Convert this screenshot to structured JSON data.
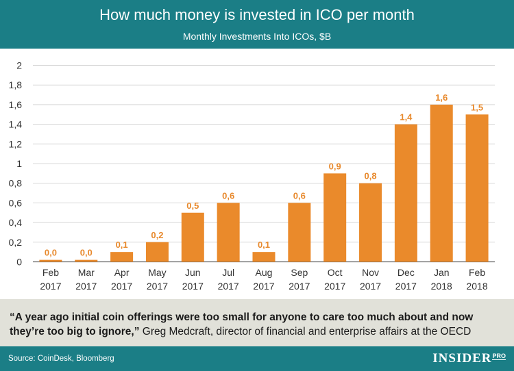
{
  "header": {
    "title": "How much money is invested in ICO per month",
    "subtitle": "Monthly Investments Into ICOs, $B"
  },
  "quote": {
    "bold_part": "“A year ago initial coin offerings were too small for anyone to care too much about and now they’re too big to ignore,”",
    "regular_part": " Greg Medcraft, director of financial and enterprise affairs at the OECD"
  },
  "footer": {
    "source": "Source: CoinDesk, Bloomberg",
    "logo_main": "INSIDER",
    "logo_sub": "PRO"
  },
  "colors": {
    "bar": "#ea8a2b",
    "header": "#1b7e86",
    "quote_bg": "#e1e1d9",
    "value_label": "#e8892c"
  },
  "chart_data": {
    "type": "bar",
    "title": "How much money is invested in ICO per month",
    "subtitle": "Monthly Investments Into ICOs, $B",
    "categories": [
      "Feb 2017",
      "Mar 2017",
      "Apr 2017",
      "May 2017",
      "Jun 2017",
      "Jul 2017",
      "Aug 2017",
      "Sep 2017",
      "Oct 2017",
      "Nov 2017",
      "Dec 2017",
      "Jan 2018",
      "Feb 2018"
    ],
    "category_lines": [
      [
        "Feb",
        "2017"
      ],
      [
        "Mar",
        "2017"
      ],
      [
        "Apr",
        "2017"
      ],
      [
        "May",
        "2017"
      ],
      [
        "Jun",
        "2017"
      ],
      [
        "Jul",
        "2017"
      ],
      [
        "Aug",
        "2017"
      ],
      [
        "Sep",
        "2017"
      ],
      [
        "Oct",
        "2017"
      ],
      [
        "Nov",
        "2017"
      ],
      [
        "Dec",
        "2017"
      ],
      [
        "Jan",
        "2018"
      ],
      [
        "Feb",
        "2018"
      ]
    ],
    "values": [
      0.02,
      0.02,
      0.1,
      0.2,
      0.5,
      0.6,
      0.1,
      0.6,
      0.9,
      0.8,
      1.4,
      1.6,
      1.5
    ],
    "value_labels": [
      "0,0",
      "0,0",
      "0,1",
      "0,2",
      "0,5",
      "0,6",
      "0,1",
      "0,6",
      "0,9",
      "0,8",
      "1,4",
      "1,6",
      "1,5"
    ],
    "yticks": [
      0,
      0.2,
      0.4,
      0.6,
      0.8,
      1,
      1.2,
      1.4,
      1.6,
      1.8,
      2
    ],
    "ytick_labels": [
      "0",
      "0,2",
      "0,4",
      "0,6",
      "0,8",
      "1",
      "1,2",
      "1,4",
      "1,6",
      "1,8",
      "2"
    ],
    "ylim": [
      0,
      2
    ],
    "grid": true,
    "legend": "none"
  }
}
